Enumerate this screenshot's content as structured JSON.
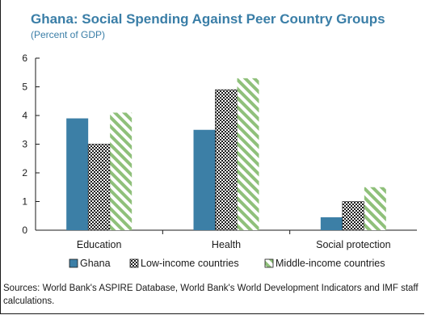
{
  "chart_data": {
    "type": "bar",
    "title": "Ghana: Social Spending Against Peer Country Groups",
    "subtitle": "(Percent of GDP)",
    "categories": [
      "Education",
      "Health",
      "Social protection"
    ],
    "series": [
      {
        "name": "Ghana",
        "values": [
          3.9,
          3.5,
          0.45
        ]
      },
      {
        "name": "Low-income countries",
        "values": [
          3.0,
          4.9,
          1.0
        ]
      },
      {
        "name": "Middle-income countries",
        "values": [
          4.1,
          5.3,
          1.5
        ]
      }
    ],
    "ylim": [
      0,
      6
    ],
    "yticks": [
      "0",
      "1",
      "2",
      "3",
      "4",
      "5",
      "6"
    ],
    "grid": false,
    "legend_position": "bottom",
    "colors": {
      "Ghana": "#3c7fa6",
      "Low-income countries": "#1a1a1a",
      "Middle-income countries": "#8fc07a",
      "title": "#3a7ea7"
    }
  },
  "source_note": "Sources: World Bank's ASPIRE Database, World Bank's World Development Indicators and IMF staff calculations."
}
